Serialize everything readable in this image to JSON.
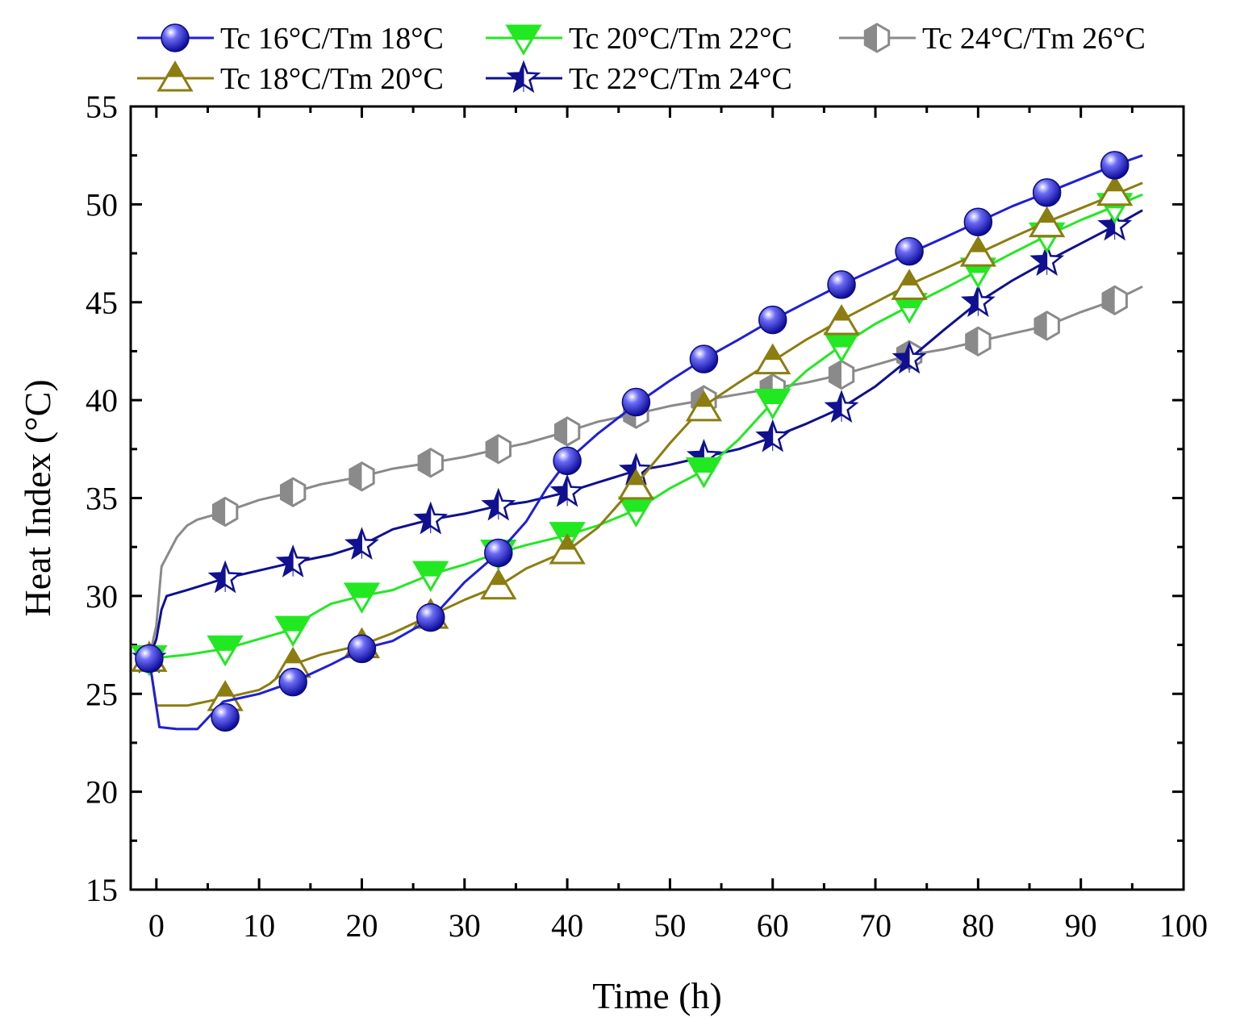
{
  "chart_data": {
    "type": "line",
    "title": "",
    "xlabel": "Time (h)",
    "ylabel": "Heat Index (°C)",
    "xlim": [
      -2.5,
      100
    ],
    "ylim": [
      15,
      55
    ],
    "xticks": [
      0,
      10,
      20,
      30,
      40,
      50,
      60,
      70,
      80,
      90,
      100
    ],
    "yticks": [
      15,
      20,
      25,
      30,
      35,
      40,
      45,
      50,
      55
    ],
    "grid": false,
    "legend_position": "top",
    "series": [
      {
        "name": "Tc 16°C/Tm 18°C",
        "color": "#1f1fd6",
        "marker": "ball",
        "marker_color": "#3a3ae6",
        "line": [
          [
            -0.7,
            26.8
          ],
          [
            0.3,
            23.3
          ],
          [
            2,
            23.2
          ],
          [
            4,
            23.2
          ],
          [
            6.5,
            24.6
          ],
          [
            10,
            25
          ],
          [
            13.3,
            25.6
          ],
          [
            17,
            26.5
          ],
          [
            20,
            27.3
          ],
          [
            23,
            27.7
          ],
          [
            26.7,
            28.8
          ],
          [
            30,
            30.7
          ],
          [
            33.3,
            32.2
          ],
          [
            36,
            33.8
          ],
          [
            38,
            35.5
          ],
          [
            40,
            36.9
          ],
          [
            43,
            38.3
          ],
          [
            46.7,
            39.8
          ],
          [
            50,
            41
          ],
          [
            53.3,
            42.1
          ],
          [
            56.7,
            43.1
          ],
          [
            60,
            44.1
          ],
          [
            63.3,
            45
          ],
          [
            66.7,
            45.9
          ],
          [
            70,
            46.7
          ],
          [
            73.3,
            47.5
          ],
          [
            76.7,
            48.3
          ],
          [
            80,
            49.1
          ],
          [
            83.3,
            49.9
          ],
          [
            86.7,
            50.6
          ],
          [
            90,
            51.3
          ],
          [
            93.3,
            52
          ],
          [
            96,
            52.5
          ]
        ],
        "markers": [
          [
            -0.7,
            26.8
          ],
          [
            6.7,
            23.8
          ],
          [
            13.3,
            25.6
          ],
          [
            20,
            27.3
          ],
          [
            26.7,
            28.9
          ],
          [
            33.3,
            32.2
          ],
          [
            40,
            36.9
          ],
          [
            46.7,
            39.9
          ],
          [
            53.3,
            42.1
          ],
          [
            60,
            44.1
          ],
          [
            66.7,
            45.9
          ],
          [
            73.3,
            47.6
          ],
          [
            80,
            49.1
          ],
          [
            86.7,
            50.6
          ],
          [
            93.3,
            52
          ]
        ]
      },
      {
        "name": "Tc 18°C/Tm 20°C",
        "color": "#8c7d10",
        "marker": "triangle-up",
        "line": [
          [
            -0.7,
            26.8
          ],
          [
            0,
            24.4
          ],
          [
            1,
            24.4
          ],
          [
            3,
            24.4
          ],
          [
            6.7,
            24.8
          ],
          [
            10,
            25.2
          ],
          [
            11,
            25.5
          ],
          [
            13.3,
            26.5
          ],
          [
            16,
            27
          ],
          [
            20,
            27.5
          ],
          [
            23,
            28.1
          ],
          [
            26.7,
            29
          ],
          [
            30,
            29.8
          ],
          [
            33.3,
            30.5
          ],
          [
            36,
            31.4
          ],
          [
            40,
            32.3
          ],
          [
            43,
            33.5
          ],
          [
            46.7,
            35.7
          ],
          [
            50,
            37.8
          ],
          [
            53.3,
            39.7
          ],
          [
            56.7,
            40.9
          ],
          [
            60,
            42
          ],
          [
            63.3,
            43.1
          ],
          [
            66.7,
            44.1
          ],
          [
            70,
            45
          ],
          [
            73.3,
            45.9
          ],
          [
            76.7,
            46.7
          ],
          [
            80,
            47.5
          ],
          [
            83.3,
            48.3
          ],
          [
            86.7,
            49.1
          ],
          [
            90,
            49.8
          ],
          [
            93.3,
            50.5
          ],
          [
            96,
            51.1
          ]
        ],
        "markers": [
          [
            -0.7,
            26.8
          ],
          [
            6.7,
            24.8
          ],
          [
            13.3,
            26.5
          ],
          [
            20,
            27.5
          ],
          [
            26.7,
            29
          ],
          [
            33.3,
            30.5
          ],
          [
            40,
            32.3
          ],
          [
            46.7,
            35.6
          ],
          [
            53.3,
            39.6
          ],
          [
            60,
            42
          ],
          [
            66.7,
            44
          ],
          [
            73.3,
            45.8
          ],
          [
            80,
            47.5
          ],
          [
            86.7,
            49
          ],
          [
            93.3,
            50.6
          ]
        ]
      },
      {
        "name": "Tc 20°C/Tm 22°C",
        "color": "#22e822",
        "marker": "triangle-down",
        "line": [
          [
            -0.7,
            26.8
          ],
          [
            3,
            27
          ],
          [
            6.7,
            27.3
          ],
          [
            10,
            27.8
          ],
          [
            13.3,
            28.3
          ],
          [
            15,
            29
          ],
          [
            17,
            29.6
          ],
          [
            20,
            30
          ],
          [
            23,
            30.3
          ],
          [
            26.7,
            31.1
          ],
          [
            30,
            31.6
          ],
          [
            33.3,
            32.2
          ],
          [
            36,
            32.6
          ],
          [
            40,
            33.1
          ],
          [
            43,
            33.6
          ],
          [
            46.7,
            34.4
          ],
          [
            50,
            35.5
          ],
          [
            53.3,
            36.4
          ],
          [
            56.7,
            38
          ],
          [
            60,
            39.9
          ],
          [
            63.3,
            41.5
          ],
          [
            66.7,
            42.8
          ],
          [
            70,
            43.9
          ],
          [
            73.3,
            44.8
          ],
          [
            76.7,
            45.7
          ],
          [
            80,
            46.6
          ],
          [
            83.3,
            47.5
          ],
          [
            86.7,
            48.4
          ],
          [
            90,
            49.2
          ],
          [
            93.3,
            49.9
          ],
          [
            96,
            50.5
          ]
        ],
        "markers": [
          [
            -0.7,
            26.8
          ],
          [
            6.7,
            27.3
          ],
          [
            13.3,
            28.3
          ],
          [
            20,
            30
          ],
          [
            26.7,
            31.1
          ],
          [
            33.3,
            32.2
          ],
          [
            40,
            33.1
          ],
          [
            46.7,
            34.4
          ],
          [
            53.3,
            36.4
          ],
          [
            60,
            39.9
          ],
          [
            66.7,
            42.8
          ],
          [
            73.3,
            44.8
          ],
          [
            80,
            46.6
          ],
          [
            86.7,
            48.4
          ],
          [
            93.3,
            49.9
          ]
        ]
      },
      {
        "name": "Tc 22°C/Tm 24°C",
        "color": "#101090",
        "marker": "star",
        "line": [
          [
            -0.7,
            26.8
          ],
          [
            0,
            27.8
          ],
          [
            0.5,
            29.3
          ],
          [
            1,
            30
          ],
          [
            3,
            30.3
          ],
          [
            6.7,
            30.9
          ],
          [
            10,
            31.3
          ],
          [
            13.3,
            31.7
          ],
          [
            17,
            32.1
          ],
          [
            20,
            32.6
          ],
          [
            23,
            33.4
          ],
          [
            26.7,
            33.9
          ],
          [
            30,
            34.2
          ],
          [
            33.3,
            34.6
          ],
          [
            36,
            34.8
          ],
          [
            40,
            35.3
          ],
          [
            43,
            35.8
          ],
          [
            46.7,
            36.4
          ],
          [
            50,
            36.7
          ],
          [
            53.3,
            37.1
          ],
          [
            56.7,
            37.5
          ],
          [
            60,
            38.1
          ],
          [
            63.3,
            38.8
          ],
          [
            66.7,
            39.6
          ],
          [
            70,
            40.7
          ],
          [
            73.3,
            42.1
          ],
          [
            76.7,
            43.6
          ],
          [
            80,
            45
          ],
          [
            83.3,
            46.1
          ],
          [
            86.7,
            47.1
          ],
          [
            90,
            48
          ],
          [
            93.3,
            48.9
          ],
          [
            96,
            49.7
          ]
        ],
        "markers": [
          [
            -0.7,
            26.8
          ],
          [
            6.7,
            30.9
          ],
          [
            13.3,
            31.7
          ],
          [
            20,
            32.6
          ],
          [
            26.7,
            33.9
          ],
          [
            33.3,
            34.6
          ],
          [
            40,
            35.3
          ],
          [
            46.7,
            36.4
          ],
          [
            53.3,
            37.1
          ],
          [
            60,
            38.1
          ],
          [
            66.7,
            39.6
          ],
          [
            73.3,
            42.1
          ],
          [
            80,
            45
          ],
          [
            86.7,
            47.1
          ],
          [
            93.3,
            48.9
          ]
        ]
      },
      {
        "name": "Tc 24°C/Tm 26°C",
        "color": "#8a8a8a",
        "marker": "hexagon-half",
        "line": [
          [
            -0.7,
            26.8
          ],
          [
            0,
            28.5
          ],
          [
            0.5,
            31.5
          ],
          [
            1,
            32
          ],
          [
            2,
            33
          ],
          [
            3,
            33.6
          ],
          [
            4,
            33.9
          ],
          [
            6.7,
            34.3
          ],
          [
            10,
            34.9
          ],
          [
            13.3,
            35.3
          ],
          [
            16,
            35.7
          ],
          [
            20,
            36.1
          ],
          [
            23,
            36.5
          ],
          [
            26.7,
            36.8
          ],
          [
            30,
            37.1
          ],
          [
            33.3,
            37.5
          ],
          [
            36,
            37.8
          ],
          [
            40,
            38.4
          ],
          [
            43,
            38.9
          ],
          [
            46.7,
            39.3
          ],
          [
            50,
            39.7
          ],
          [
            53.3,
            40
          ],
          [
            56.7,
            40.3
          ],
          [
            60,
            40.6
          ],
          [
            63.3,
            40.9
          ],
          [
            66.7,
            41.3
          ],
          [
            70,
            41.8
          ],
          [
            73.3,
            42.3
          ],
          [
            76.7,
            42.6
          ],
          [
            80,
            43
          ],
          [
            83.3,
            43.4
          ],
          [
            86.7,
            43.8
          ],
          [
            90,
            44.5
          ],
          [
            93.3,
            45.1
          ],
          [
            96,
            45.8
          ]
        ],
        "markers": [
          [
            -0.7,
            26.8
          ],
          [
            6.7,
            34.3
          ],
          [
            13.3,
            35.3
          ],
          [
            20,
            36.1
          ],
          [
            26.7,
            36.8
          ],
          [
            33.3,
            37.5
          ],
          [
            40,
            38.4
          ],
          [
            46.7,
            39.3
          ],
          [
            53.3,
            40
          ],
          [
            60,
            40.6
          ],
          [
            66.7,
            41.3
          ],
          [
            73.3,
            42.3
          ],
          [
            80,
            43
          ],
          [
            86.7,
            43.8
          ],
          [
            93.3,
            45.1
          ]
        ]
      }
    ]
  }
}
